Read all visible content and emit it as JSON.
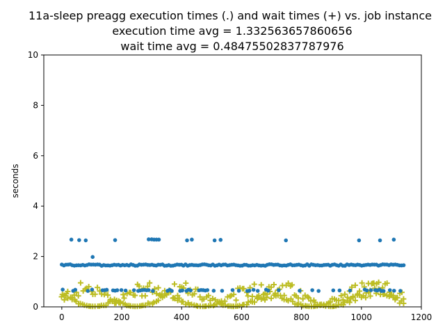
{
  "chart_data": {
    "type": "scatter",
    "title_lines": [
      "11a-sleep preagg execution times (.) and wait times (+) vs. job instance",
      "execution time avg = 1.332563657860656",
      "wait time avg = 0.48475502837787976"
    ],
    "xlabel": "",
    "ylabel": "seconds",
    "xlim": [
      -60,
      1200
    ],
    "ylim": [
      0,
      10
    ],
    "xticks": [
      0,
      200,
      400,
      600,
      800,
      1000,
      1200
    ],
    "yticks": [
      0,
      2,
      4,
      6,
      8,
      10
    ],
    "grid": false,
    "series": [
      {
        "marker": "dot",
        "color": "#1f77b4",
        "base_value": 1.66,
        "lower_value": 0.66,
        "x_start": 0,
        "x_end": 1143,
        "x_step": 7,
        "high_points": [
          {
            "x": 32,
            "y": 2.67
          },
          {
            "x": 58,
            "y": 2.65
          },
          {
            "x": 80,
            "y": 2.64
          },
          {
            "x": 103,
            "y": 1.98
          },
          {
            "x": 178,
            "y": 2.65
          },
          {
            "x": 290,
            "y": 2.68
          },
          {
            "x": 300,
            "y": 2.68
          },
          {
            "x": 308,
            "y": 2.67
          },
          {
            "x": 316,
            "y": 2.67
          },
          {
            "x": 324,
            "y": 2.67
          },
          {
            "x": 418,
            "y": 2.64
          },
          {
            "x": 434,
            "y": 2.67
          },
          {
            "x": 510,
            "y": 2.64
          },
          {
            "x": 530,
            "y": 2.66
          },
          {
            "x": 748,
            "y": 2.64
          },
          {
            "x": 992,
            "y": 2.64
          },
          {
            "x": 1062,
            "y": 2.64
          },
          {
            "x": 1108,
            "y": 2.67
          }
        ]
      },
      {
        "marker": "plus",
        "color": "#bcbd22",
        "min_value": 0.02,
        "max_value": 1.0,
        "x_start": 0,
        "x_end": 1143,
        "x_step": 7
      }
    ]
  }
}
